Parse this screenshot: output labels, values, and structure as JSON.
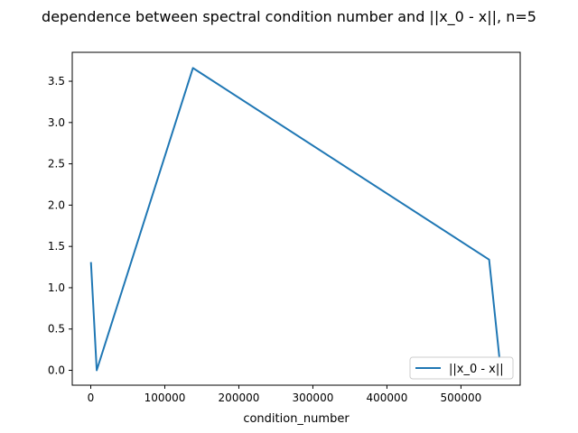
{
  "chart_data": {
    "type": "line",
    "title": "dependence between spectral condition number and ||x_0 - x||, n=5",
    "xlabel": "condition_number",
    "ylabel": "",
    "xlim": [
      -25000,
      580000
    ],
    "ylim": [
      -0.18,
      3.85
    ],
    "xticks": [
      0,
      100000,
      200000,
      300000,
      400000,
      500000
    ],
    "xtick_labels": [
      "0",
      "100000",
      "200000",
      "300000",
      "400000",
      "500000"
    ],
    "yticks": [
      0.0,
      0.5,
      1.0,
      1.5,
      2.0,
      2.5,
      3.0,
      3.5
    ],
    "ytick_labels": [
      "0.0",
      "0.5",
      "1.0",
      "1.5",
      "2.0",
      "2.5",
      "3.0",
      "3.5"
    ],
    "grid": false,
    "legend_position": "lower right",
    "series": [
      {
        "name": "||x_0 - x||",
        "color": "#1f77b4",
        "x": [
          200,
          8000,
          138000,
          538000,
          552000
        ],
        "y": [
          1.31,
          0.0,
          3.66,
          1.34,
          0.15
        ]
      }
    ]
  }
}
